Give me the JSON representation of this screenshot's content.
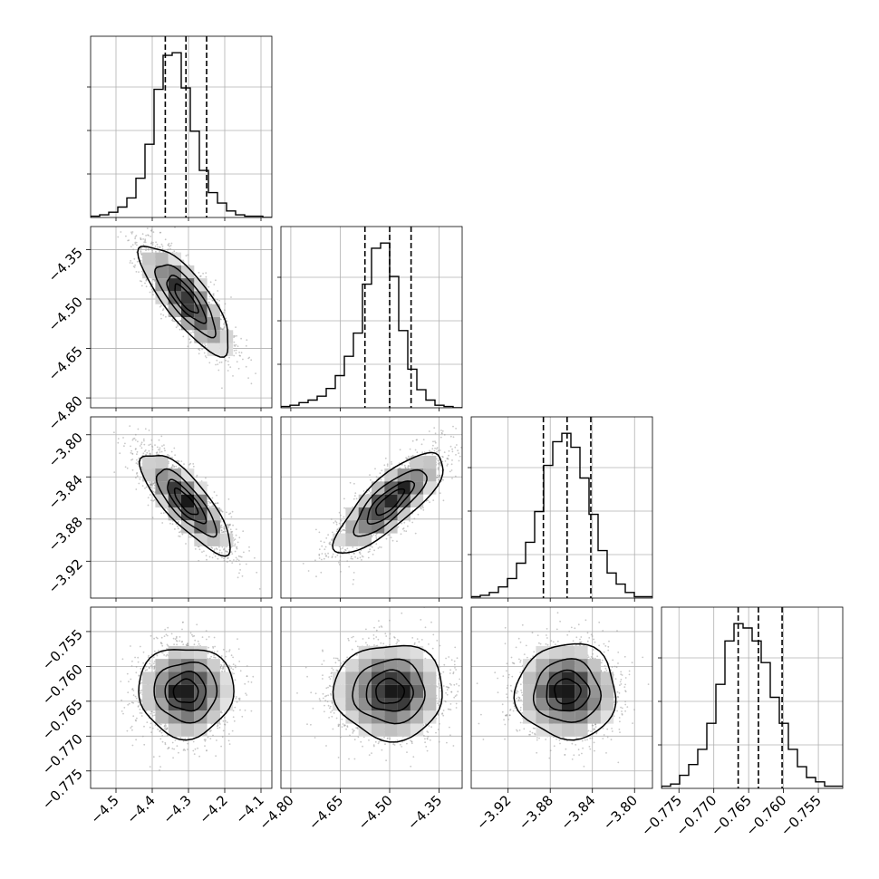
{
  "chart_data": {
    "type": "corner",
    "title": "",
    "labels": [
      "",
      "",
      "",
      ""
    ],
    "grid": true,
    "parameters": [
      {
        "range": [
          -4.57,
          -4.07
        ],
        "ticks": [
          -4.5,
          -4.4,
          -4.3,
          -4.2,
          -4.1
        ],
        "tick_labels": [
          "−4.5",
          "−4.4",
          "−4.3",
          "−4.2",
          "−4.1"
        ],
        "quantiles": [
          -4.364,
          -4.307,
          -4.25
        ],
        "hist": {
          "edges_start": -4.57,
          "bin_width": 0.025,
          "counts": [
            1,
            2,
            4,
            8,
            15,
            30,
            56,
            98,
            124,
            126,
            99,
            66,
            36,
            19,
            11,
            5,
            2,
            1,
            1,
            0
          ]
        }
      },
      {
        "range": [
          -4.83,
          -4.28
        ],
        "ticks": [
          -4.8,
          -4.65,
          -4.5,
          -4.35
        ],
        "tick_labels": [
          "−4.80",
          "−4.65",
          "−4.50",
          "−4.35"
        ],
        "quantiles": [
          -4.575,
          -4.5,
          -4.435
        ],
        "hist": {
          "edges_start": -4.83,
          "bin_width": 0.0275,
          "counts": [
            1,
            2,
            4,
            6,
            9,
            15,
            25,
            40,
            58,
            96,
            124,
            128,
            102,
            60,
            30,
            14,
            6,
            2,
            1,
            0
          ]
        }
      },
      {
        "range": [
          -3.955,
          -3.783
        ],
        "ticks": [
          -3.92,
          -3.88,
          -3.84,
          -3.8
        ],
        "tick_labels": [
          "−3.92",
          "−3.88",
          "−3.84",
          "−3.80"
        ],
        "quantiles": [
          -3.8865,
          -3.864,
          -3.8415
        ],
        "hist": {
          "edges_start": -3.955,
          "bin_width": 0.0086,
          "counts": [
            1,
            2,
            4,
            8,
            14,
            25,
            40,
            62,
            95,
            112,
            118,
            108,
            86,
            60,
            34,
            18,
            10,
            4,
            1,
            1
          ]
        }
      },
      {
        "range": [
          -0.7775,
          -0.7515
        ],
        "ticks": [
          -0.775,
          -0.77,
          -0.765,
          -0.76,
          -0.755
        ],
        "tick_labels": [
          "−0.775",
          "−0.770",
          "−0.765",
          "−0.760",
          "−0.755"
        ],
        "quantiles": [
          -0.7665,
          -0.7636,
          -0.7602
        ],
        "hist": {
          "edges_start": -0.7775,
          "bin_width": 0.0013,
          "counts": [
            1,
            2,
            6,
            11,
            18,
            30,
            48,
            68,
            76,
            74,
            68,
            58,
            42,
            30,
            18,
            10,
            5,
            3,
            1,
            1
          ]
        }
      }
    ],
    "pairs": [
      {
        "x": 0,
        "y": 1,
        "mean": [
          -4.307,
          -4.5
        ],
        "sd": [
          0.06,
          0.08
        ],
        "rho": -0.8
      },
      {
        "x": 0,
        "y": 2,
        "mean": [
          -4.307,
          -3.864
        ],
        "sd": [
          0.06,
          0.023
        ],
        "rho": -0.8
      },
      {
        "x": 1,
        "y": 2,
        "mean": [
          -4.5,
          -3.864
        ],
        "sd": [
          0.08,
          0.023
        ],
        "rho": 0.8
      },
      {
        "x": 0,
        "y": 3,
        "mean": [
          -4.307,
          -0.7636
        ],
        "sd": [
          0.06,
          0.0033
        ],
        "rho": 0.0
      },
      {
        "x": 1,
        "y": 3,
        "mean": [
          -4.5,
          -0.7636
        ],
        "sd": [
          0.08,
          0.0033
        ],
        "rho": 0.0
      },
      {
        "x": 2,
        "y": 3,
        "mean": [
          -3.864,
          -0.7636
        ],
        "sd": [
          0.023,
          0.0033
        ],
        "rho": 0.0
      }
    ],
    "levels_sigma": [
      0.5,
      1.0,
      1.5,
      2.0
    ]
  }
}
